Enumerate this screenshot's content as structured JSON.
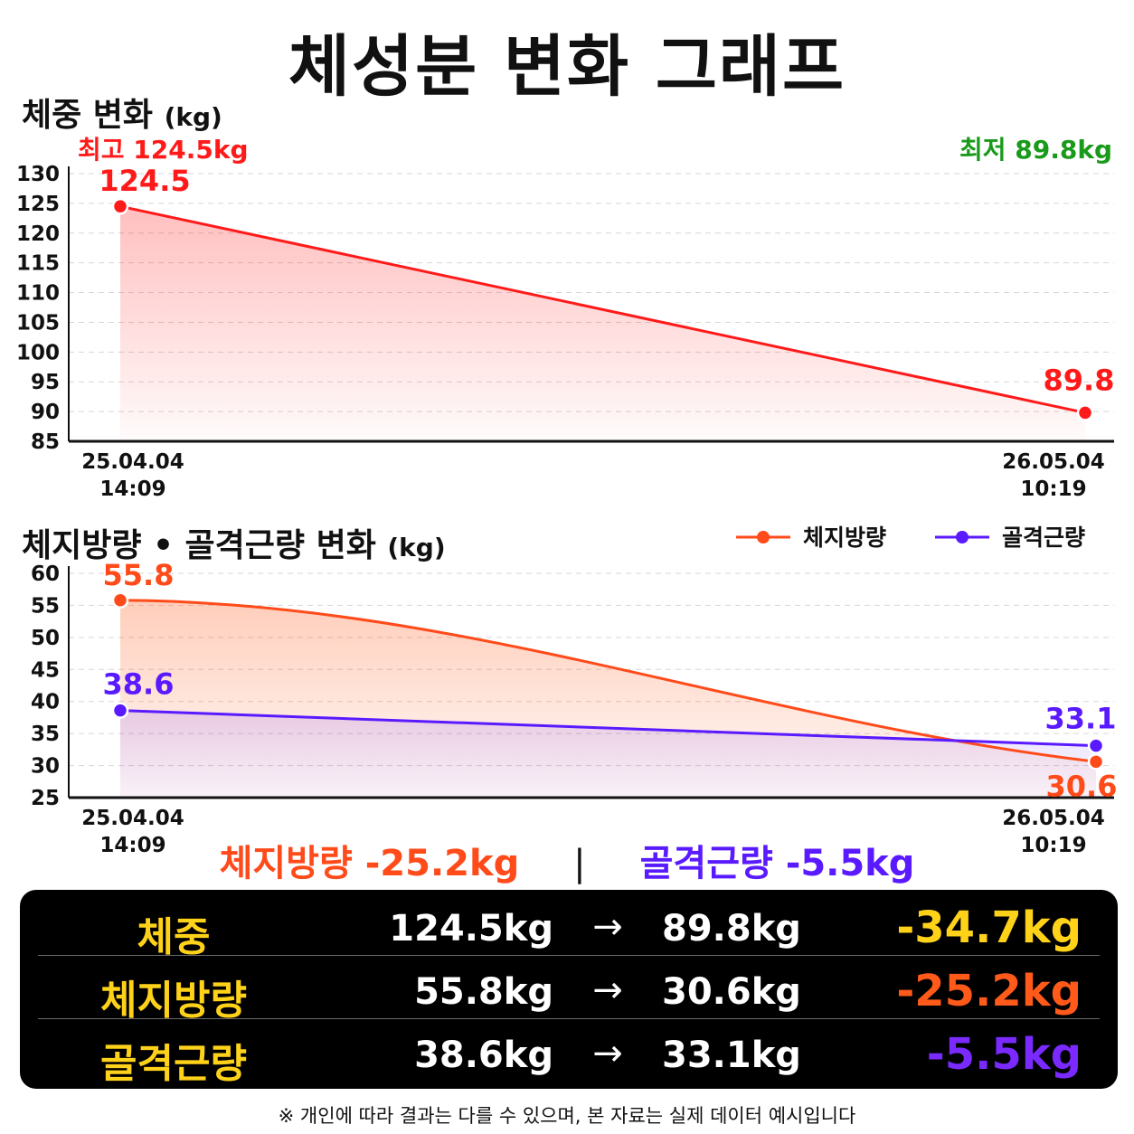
{
  "title": "체성분 변화 그래프",
  "colors": {
    "weight": "#ff1a1a",
    "fat": "#ff4a1a",
    "muscle": "#5a1aff",
    "min_label": "#1a9a1a",
    "table_label": "#ffd21a",
    "table_weight_diff": "#ffd21a",
    "table_fat_diff": "#ff5a1a",
    "table_muscle_diff": "#7a2aff"
  },
  "chart1": {
    "title": "체중 변화",
    "unit": "(kg)",
    "max_label": "최고 124.5kg",
    "min_label": "최저 89.8kg"
  },
  "chart2": {
    "title": "체지방량 • 골격근량 변화",
    "unit": "(kg)"
  },
  "chart_data": [
    {
      "type": "area",
      "title": "체중 변화 (kg)",
      "x": [
        "25.04.04 14:09",
        "26.05.04 10:19"
      ],
      "series": [
        {
          "name": "",
          "values": [
            124.5,
            89.8
          ],
          "labels": [
            "124.5",
            "89.8"
          ]
        }
      ],
      "ylim": [
        85,
        130
      ],
      "yticks": [
        85,
        90,
        95,
        100,
        105,
        110,
        115,
        120,
        125,
        130
      ],
      "grid": true
    },
    {
      "type": "area",
      "title": "체지방량 • 골격근량 변화 (kg)",
      "x": [
        "25.04.04 14:09",
        "26.05.04 10:19"
      ],
      "series": [
        {
          "name": "체지방량",
          "values": [
            55.8,
            30.6
          ],
          "labels": [
            "55.8",
            "30.6"
          ]
        },
        {
          "name": "골격근량",
          "values": [
            38.6,
            33.1
          ],
          "labels": [
            "38.6",
            "33.1"
          ]
        }
      ],
      "ylim": [
        25,
        60
      ],
      "yticks": [
        25,
        30,
        35,
        40,
        45,
        50,
        55,
        60
      ],
      "grid": true,
      "legend": "top-right"
    }
  ],
  "summary": {
    "fat": "체지방량 -25.2kg",
    "separator": "|",
    "muscle": "골격근량 -5.5kg"
  },
  "table": {
    "rows": [
      {
        "label": "체중",
        "from": "124.5kg",
        "arrow": "→",
        "to": "89.8kg",
        "diff": "-34.7kg"
      },
      {
        "label": "체지방량",
        "from": "55.8kg",
        "arrow": "→",
        "to": "30.6kg",
        "diff": "-25.2kg"
      },
      {
        "label": "골격근량",
        "from": "38.6kg",
        "arrow": "→",
        "to": "33.1kg",
        "diff": "-5.5kg"
      }
    ]
  },
  "footnote": "※ 개인에 따라 결과는 다를 수 있으며, 본 자료는 실제 데이터 예시입니다"
}
